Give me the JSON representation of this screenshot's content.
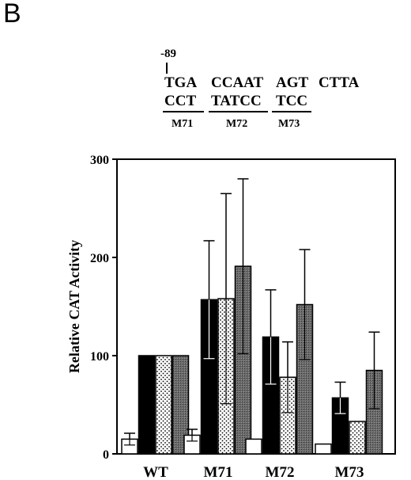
{
  "panel": {
    "letter": "B"
  },
  "sequence": {
    "position_label": "-89",
    "wild_type_line": [
      "TGA",
      "CCAAT",
      "AGT",
      "CTTA"
    ],
    "mutant_line": [
      "CCT",
      "TATCC",
      "TCC"
    ],
    "mutant_labels": [
      "M71",
      "M72",
      "M73"
    ]
  },
  "chart_data": {
    "type": "bar",
    "title": "",
    "xlabel": "",
    "ylabel": "Relative  CAT  Activity",
    "ylim": [
      0,
      300
    ],
    "yticks": [
      0,
      100,
      200,
      300
    ],
    "grid": false,
    "legend": "none",
    "categories": [
      "WT",
      "M71",
      "M72",
      "M73"
    ],
    "series": [
      {
        "pattern": "white",
        "color": "#ffffff",
        "values": [
          15,
          19,
          15,
          10
        ],
        "error": [
          6,
          6,
          0,
          0
        ]
      },
      {
        "pattern": "solid-black",
        "color": "#000000",
        "values": [
          100,
          157,
          119,
          57
        ],
        "error": [
          0,
          60,
          48,
          16
        ]
      },
      {
        "pattern": "dotted",
        "color": "#e6e6e6",
        "values": [
          100,
          158,
          78,
          33
        ],
        "error": [
          0,
          107,
          36,
          0
        ]
      },
      {
        "pattern": "dark-stipple",
        "color": "#666666",
        "values": [
          100,
          191,
          152,
          85
        ],
        "error": [
          0,
          89,
          56,
          39
        ]
      }
    ]
  }
}
